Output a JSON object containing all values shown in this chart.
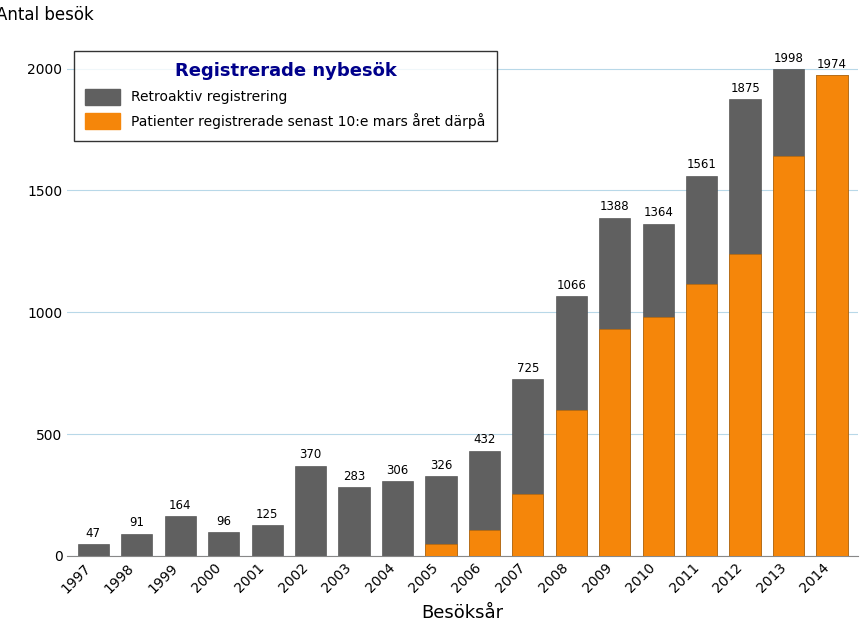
{
  "years": [
    1997,
    1998,
    1999,
    2000,
    2001,
    2002,
    2003,
    2004,
    2005,
    2006,
    2007,
    2008,
    2009,
    2010,
    2011,
    2012,
    2013,
    2014
  ],
  "total": [
    47,
    91,
    164,
    96,
    125,
    370,
    283,
    306,
    326,
    432,
    725,
    1066,
    1388,
    1364,
    1561,
    1875,
    1998,
    1974
  ],
  "orange": [
    0,
    0,
    0,
    0,
    0,
    0,
    0,
    0,
    50,
    105,
    255,
    600,
    930,
    980,
    1115,
    1240,
    1640,
    1974
  ],
  "gray_color": "#606060",
  "orange_color": "#F5860A",
  "background_color": "#ffffff",
  "grid_color": "#b8d8e8",
  "ylabel": "Antal besök",
  "xlabel": "Besöksår",
  "legend_title": "Registrerade nybesök",
  "legend_label_gray": "Retroaktiv registrering",
  "legend_label_orange": "Patienter registrerade senast 10:e mars året därpå",
  "ylim": [
    0,
    2100
  ],
  "yticks": [
    0,
    500,
    1000,
    1500,
    2000
  ],
  "annotation_fontsize": 8.5,
  "tick_fontsize": 10,
  "axis_label_fontsize": 12,
  "xlabel_fontsize": 13,
  "legend_title_fontsize": 13,
  "legend_fontsize": 10
}
